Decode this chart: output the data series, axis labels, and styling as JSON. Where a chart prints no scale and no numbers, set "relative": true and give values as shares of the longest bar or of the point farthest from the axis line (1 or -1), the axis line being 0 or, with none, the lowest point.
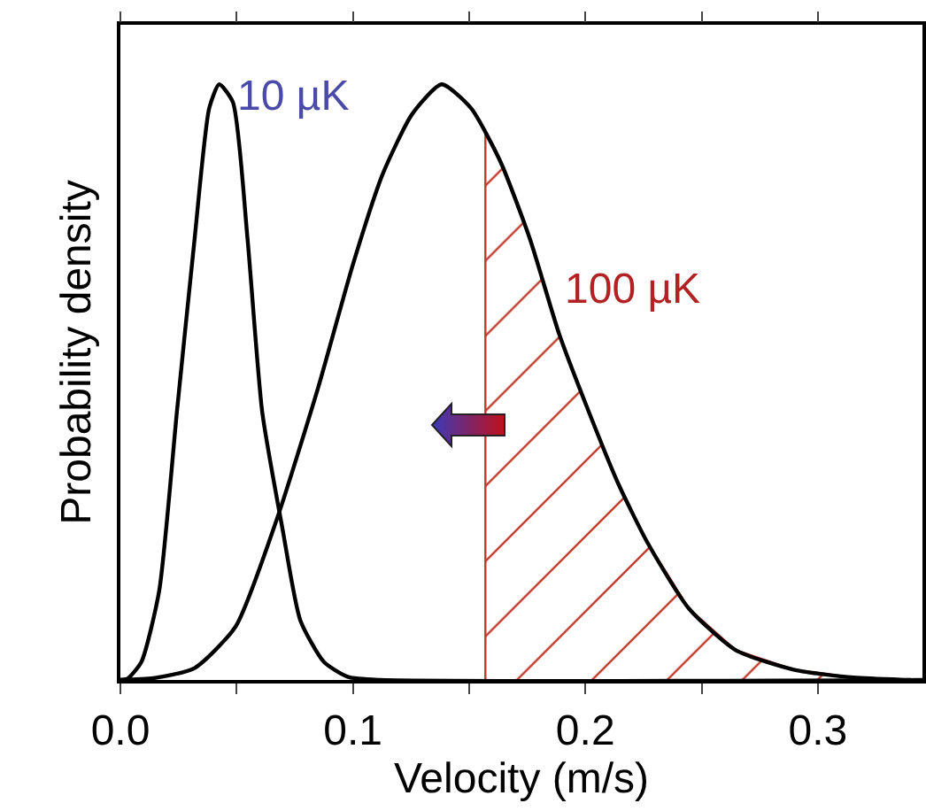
{
  "chart_data": {
    "type": "line",
    "relative": true,
    "xlabel": "Velocity (m/s)",
    "ylabel": "Probability density",
    "xlim": [
      0,
      0.345
    ],
    "xticks": [
      {
        "value": 0,
        "label": "0.0"
      },
      {
        "value": 0.05,
        "label": null
      },
      0.1,
      {
        "value": 0.15,
        "label": null
      },
      0.2,
      {
        "value": 0.25,
        "label": null
      },
      0.3
    ],
    "series": [
      {
        "name": "10 µK",
        "color": "#000000",
        "x": [
          0,
          0.003,
          0.009,
          0.0167,
          0.0243,
          0.0319,
          0.0382,
          0.0425,
          0.0484,
          0.0547,
          0.061,
          0.0699,
          0.0774,
          0.0876,
          0.098,
          0.112,
          0.345
        ],
        "values": [
          0,
          0.002,
          0.03,
          0.15,
          0.45,
          0.74,
          0.96,
          1.0,
          0.97,
          0.74,
          0.45,
          0.25,
          0.1,
          0.03,
          0.005,
          0,
          0
        ]
      },
      {
        "name": "100 µK",
        "color": "#000000",
        "x": [
          0,
          0.0142,
          0.0319,
          0.0496,
          0.0673,
          0.085,
          0.1002,
          0.1129,
          0.1255,
          0.1382,
          0.1508,
          0.1635,
          0.1762,
          0.1888,
          0.2015,
          0.2141,
          0.2268,
          0.2445,
          0.2647,
          0.29,
          0.3154,
          0.34
        ],
        "values": [
          0,
          0.003,
          0.02,
          0.09,
          0.27,
          0.49,
          0.7,
          0.85,
          0.95,
          1.0,
          0.96,
          0.87,
          0.74,
          0.58,
          0.45,
          0.33,
          0.23,
          0.12,
          0.05,
          0.017,
          0.004,
          0
        ]
      },
      {
        "type": "area",
        "color": "#c0392b",
        "x": [
          0.157,
          0.157,
          0.1635,
          0.1762,
          0.1888,
          0.2015,
          0.2141,
          0.2268,
          0.2445,
          0.2647,
          0.29,
          0.3154,
          0.34
        ],
        "values": [
          0,
          0.92,
          0.87,
          0.74,
          0.58,
          0.45,
          0.33,
          0.23,
          0.12,
          0.05,
          0.017,
          0.004,
          0
        ]
      }
    ]
  }
}
